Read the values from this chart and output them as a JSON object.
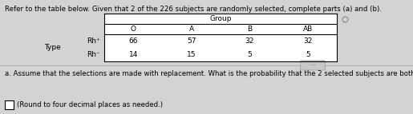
{
  "title_text": "Refer to the table below. Given that 2 of the 226 subjects are randomly selected, complete parts (a) and (b).",
  "group_label": "Group",
  "col_headers": [
    "O",
    "A",
    "B",
    "AB"
  ],
  "row_labels": [
    "Rh⁺",
    "Rh⁻"
  ],
  "row_type_label": "Type",
  "data": [
    [
      66,
      57,
      32,
      32
    ],
    [
      14,
      15,
      5,
      5
    ]
  ],
  "question_a": "a. Assume that the selections are made with replacement. What is the probability that the 2 selected subjects are both group A and type Rh⁺?",
  "question_b": "(Round to four decimal places as needed.)",
  "bg_color": "#d3d3d3",
  "title_color": "#000000",
  "text_color": "#000000"
}
